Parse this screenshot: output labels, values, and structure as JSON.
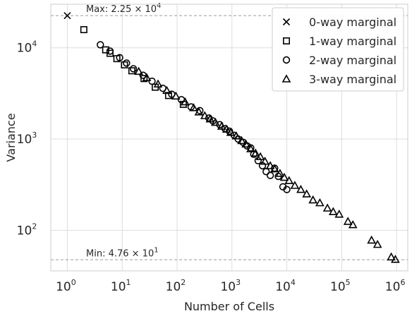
{
  "chart_data": {
    "type": "scatter",
    "xlabel": "Number of Cells",
    "ylabel": "Variance",
    "xscale": "log",
    "yscale": "log",
    "xlim": [
      0.5,
      1600000
    ],
    "ylim": [
      36,
      30000
    ],
    "grid": true,
    "legend_position": "top-right",
    "x_ticks": [
      {
        "value": 1,
        "base": "10",
        "exp": "0"
      },
      {
        "value": 10,
        "base": "10",
        "exp": "1"
      },
      {
        "value": 100,
        "base": "10",
        "exp": "2"
      },
      {
        "value": 1000,
        "base": "10",
        "exp": "3"
      },
      {
        "value": 10000,
        "base": "10",
        "exp": "4"
      },
      {
        "value": 100000,
        "base": "10",
        "exp": "5"
      },
      {
        "value": 1000000,
        "base": "10",
        "exp": "6"
      }
    ],
    "y_ticks": [
      {
        "value": 100,
        "base": "10",
        "exp": "2"
      },
      {
        "value": 1000,
        "base": "10",
        "exp": "3"
      },
      {
        "value": 10000,
        "base": "10",
        "exp": "4"
      }
    ],
    "reference_lines": [
      {
        "name": "max-line",
        "y": 22500,
        "label_prefix": "Max: 2.25 × 10",
        "label_exp": "4"
      },
      {
        "name": "min-line",
        "y": 47.6,
        "label_prefix": "Min: 4.76 × 10",
        "label_exp": "1"
      }
    ],
    "series": [
      {
        "name": "0-way marginal",
        "marker": "x",
        "points": [
          [
            1,
            22500
          ]
        ]
      },
      {
        "name": "1-way marginal",
        "marker": "square",
        "points": [
          [
            2,
            15800
          ],
          [
            5,
            9500
          ],
          [
            6,
            8700
          ],
          [
            8,
            7600
          ],
          [
            11,
            6500
          ],
          [
            15,
            5600
          ],
          [
            25,
            4600
          ],
          [
            40,
            3700
          ],
          [
            70,
            3000
          ],
          [
            130,
            2400
          ]
        ]
      },
      {
        "name": "2-way marginal",
        "marker": "circle",
        "points": [
          [
            4,
            10800
          ],
          [
            6,
            9200
          ],
          [
            9,
            7800
          ],
          [
            12,
            6800
          ],
          [
            16,
            5900
          ],
          [
            24,
            5000
          ],
          [
            35,
            4300
          ],
          [
            55,
            3600
          ],
          [
            80,
            3100
          ],
          [
            120,
            2700
          ],
          [
            180,
            2250
          ],
          [
            260,
            2050
          ],
          [
            380,
            1700
          ],
          [
            450,
            1580
          ],
          [
            600,
            1440
          ],
          [
            750,
            1300
          ],
          [
            900,
            1220
          ],
          [
            1100,
            1100
          ],
          [
            1300,
            1000
          ],
          [
            1600,
            920
          ],
          [
            1900,
            840
          ],
          [
            2200,
            800
          ],
          [
            2500,
            680
          ],
          [
            3000,
            580
          ],
          [
            3600,
            510
          ],
          [
            4200,
            440
          ],
          [
            5000,
            400
          ],
          [
            6000,
            480
          ],
          [
            7000,
            390
          ],
          [
            8500,
            300
          ],
          [
            10000,
            280
          ]
        ]
      },
      {
        "name": "3-way marginal",
        "marker": "triangle",
        "points": [
          [
            20,
            5500
          ],
          [
            28,
            4700
          ],
          [
            45,
            4000
          ],
          [
            65,
            3400
          ],
          [
            95,
            2950
          ],
          [
            140,
            2550
          ],
          [
            200,
            2200
          ],
          [
            250,
            1980
          ],
          [
            320,
            1800
          ],
          [
            400,
            1660
          ],
          [
            500,
            1520
          ],
          [
            650,
            1380
          ],
          [
            800,
            1280
          ],
          [
            950,
            1180
          ],
          [
            1200,
            1080
          ],
          [
            1500,
            960
          ],
          [
            1800,
            880
          ],
          [
            2200,
            780
          ],
          [
            2700,
            700
          ],
          [
            3300,
            640
          ],
          [
            4000,
            570
          ],
          [
            5000,
            510
          ],
          [
            6000,
            470
          ],
          [
            7500,
            420
          ],
          [
            9000,
            380
          ],
          [
            11000,
            350
          ],
          [
            14000,
            310
          ],
          [
            18000,
            280
          ],
          [
            23000,
            250
          ],
          [
            30000,
            215
          ],
          [
            40000,
            200
          ],
          [
            55000,
            175
          ],
          [
            70000,
            160
          ],
          [
            90000,
            150
          ],
          [
            130000,
            125
          ],
          [
            160000,
            115
          ],
          [
            350000,
            78
          ],
          [
            450000,
            70
          ],
          [
            800000,
            51
          ],
          [
            950000,
            48
          ]
        ]
      }
    ]
  }
}
